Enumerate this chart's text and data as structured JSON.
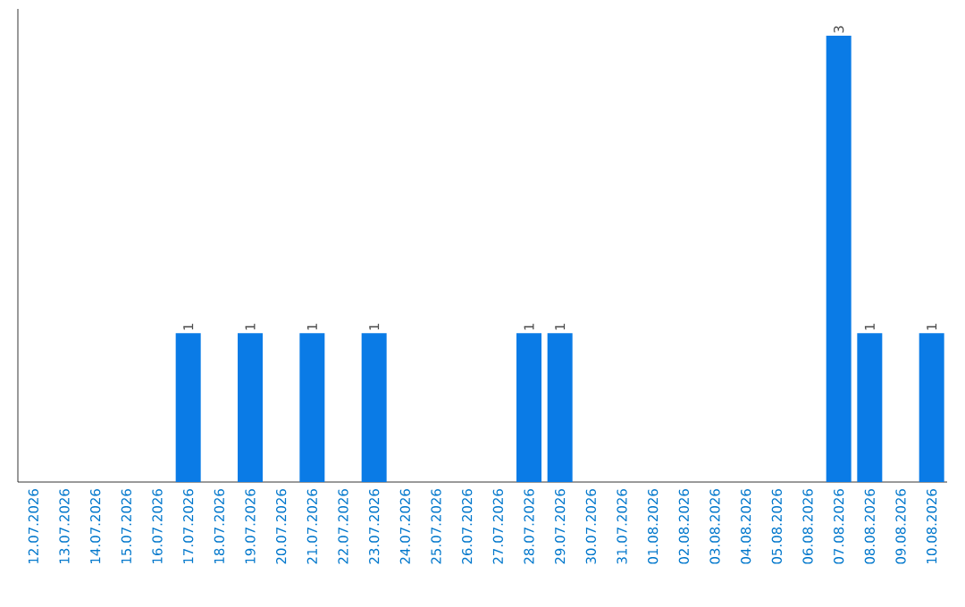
{
  "chart_data": {
    "type": "bar",
    "categories": [
      "12.07.2026",
      "13.07.2026",
      "14.07.2026",
      "15.07.2026",
      "16.07.2026",
      "17.07.2026",
      "18.07.2026",
      "19.07.2026",
      "20.07.2026",
      "21.07.2026",
      "22.07.2026",
      "23.07.2026",
      "24.07.2026",
      "25.07.2026",
      "26.07.2026",
      "27.07.2026",
      "28.07.2026",
      "29.07.2026",
      "30.07.2026",
      "31.07.2026",
      "01.08.2026",
      "02.08.2026",
      "03.08.2026",
      "04.08.2026",
      "05.08.2026",
      "06.08.2026",
      "07.08.2026",
      "08.08.2026",
      "09.08.2026",
      "10.08.2026"
    ],
    "values": [
      0,
      0,
      0,
      0,
      0,
      1,
      0,
      1,
      0,
      1,
      0,
      1,
      0,
      0,
      0,
      0,
      1,
      1,
      0,
      0,
      0,
      0,
      0,
      0,
      0,
      0,
      3,
      1,
      0,
      1
    ],
    "value_labels": [
      null,
      null,
      null,
      null,
      null,
      "1",
      null,
      "1",
      null,
      "1",
      null,
      "1",
      null,
      null,
      null,
      null,
      "1",
      "1",
      null,
      null,
      null,
      null,
      null,
      null,
      null,
      null,
      "3",
      "1",
      null,
      "1"
    ],
    "color": "#0a7be6",
    "tick_labels": "x"
  }
}
